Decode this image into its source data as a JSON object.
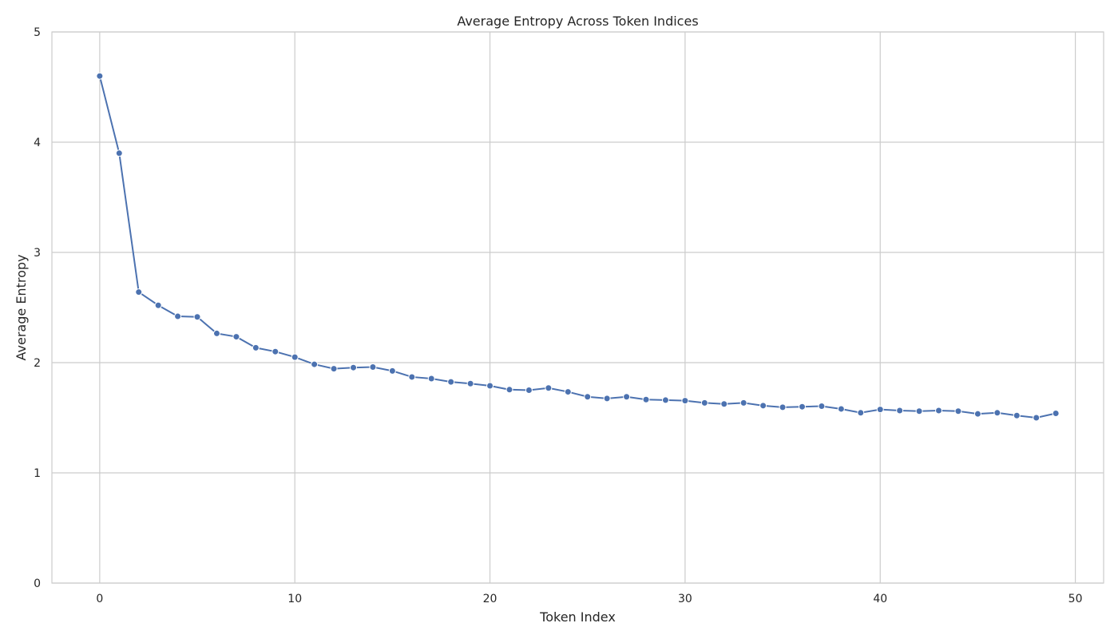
{
  "chart_data": {
    "type": "line",
    "title": "Average Entropy Across Token Indices",
    "xlabel": "Token Index",
    "ylabel": "Average Entropy",
    "xlim": [
      -2.45,
      51.45
    ],
    "ylim": [
      0,
      5
    ],
    "xticks": [
      0,
      10,
      20,
      30,
      40,
      50
    ],
    "yticks": [
      0,
      1,
      2,
      3,
      4,
      5
    ],
    "grid": true,
    "line_color": "#4c72b0",
    "marker": "circle",
    "x": [
      0,
      1,
      2,
      3,
      4,
      5,
      6,
      7,
      8,
      9,
      10,
      11,
      12,
      13,
      14,
      15,
      16,
      17,
      18,
      19,
      20,
      21,
      22,
      23,
      24,
      25,
      26,
      27,
      28,
      29,
      30,
      31,
      32,
      33,
      34,
      35,
      36,
      37,
      38,
      39,
      40,
      41,
      42,
      43,
      44,
      45,
      46,
      47,
      48,
      49
    ],
    "y": [
      4.6,
      3.9,
      2.64,
      2.52,
      2.42,
      2.415,
      2.265,
      2.235,
      2.135,
      2.1,
      2.05,
      1.985,
      1.945,
      1.955,
      1.96,
      1.925,
      1.87,
      1.855,
      1.825,
      1.81,
      1.79,
      1.755,
      1.75,
      1.77,
      1.735,
      1.69,
      1.675,
      1.69,
      1.665,
      1.66,
      1.655,
      1.635,
      1.625,
      1.635,
      1.61,
      1.595,
      1.6,
      1.605,
      1.58,
      1.545,
      1.575,
      1.565,
      1.56,
      1.565,
      1.56,
      1.535,
      1.545,
      1.52,
      1.5,
      1.54
    ]
  }
}
